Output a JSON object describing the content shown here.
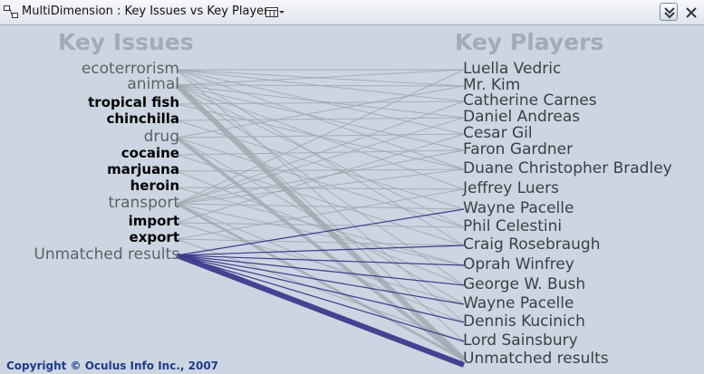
{
  "window": {
    "title": "MultiDimension : Key Issues vs Key Players"
  },
  "headings": {
    "issues": "Key Issues",
    "players": "Key Players"
  },
  "issues": [
    {
      "label": "ecoterrorism",
      "style": "light"
    },
    {
      "label": "animal",
      "style": "light"
    },
    {
      "label": "tropical fish",
      "style": "dark"
    },
    {
      "label": "chinchilla",
      "style": "dark"
    },
    {
      "label": "drug",
      "style": "light"
    },
    {
      "label": "cocaine",
      "style": "dark"
    },
    {
      "label": "marjuana",
      "style": "dark"
    },
    {
      "label": "heroin",
      "style": "dark"
    },
    {
      "label": "transport",
      "style": "light"
    },
    {
      "label": "import",
      "style": "dark"
    },
    {
      "label": "export",
      "style": "dark"
    },
    {
      "label": "Unmatched results",
      "style": "light"
    }
  ],
  "players": [
    "Luella Vedric",
    "Mr. Kim",
    "Catherine Carnes",
    "Daniel Andreas",
    "Cesar Gil",
    "Faron Gardner",
    "Duane Christopher Bradley",
    "Jeffrey Luers",
    "Wayne Pacelle",
    "Phil Celestini",
    "Craig Rosebraugh",
    "Oprah Winfrey",
    "George W. Bush",
    "Wayne Pacelle",
    "Dennis Kucinich",
    "Lord Sainsbury",
    "Unmatched results"
  ],
  "colors": {
    "background": "#ccd5e1",
    "heading": "#a6aab5",
    "issue_light": "#5f6166",
    "issue_dark": "#000000",
    "player": "#3c3e44",
    "link_gray": "#a3a8b0",
    "link_selected": "#3c3a8c",
    "footer": "#1d3c8a"
  },
  "footer": {
    "copyright": "Copyright © Oculus Info Inc., 2007"
  }
}
